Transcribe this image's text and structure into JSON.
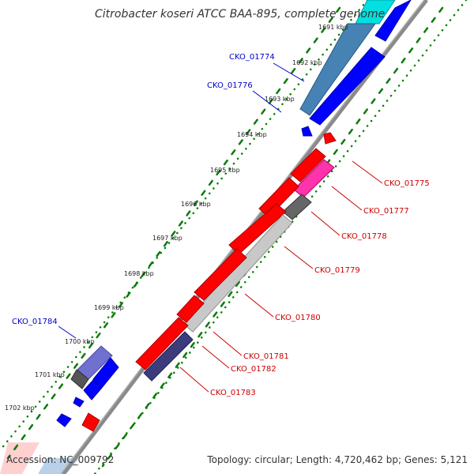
{
  "title": "Citrobacter koseri ATCC BAA-895, complete genome",
  "accession": "Accession: NC_009792",
  "topology": "Topology: circular; Length: 4,720,462 bp; Genes: 5,121",
  "colors": {
    "forward": "#0000ff",
    "reverse": "#ff0000",
    "cyan": "#00ffff",
    "steel": "#4682b4",
    "magenta": "#ff33aa",
    "slate": "#3c3c7c",
    "gray": "#666666",
    "lightgray": "#c0c0c0",
    "backbone": "#8a8a8a",
    "dots": "#008000"
  },
  "ticks": [
    "1691 kbp",
    "1692 kbp",
    "1693 kbp",
    "1694 kbp",
    "1695 kbp",
    "1696 kbp",
    "1697 kbp",
    "1698 kbp",
    "1699 kbp",
    "1700 kbp",
    "1701 kbp",
    "1702 kbp"
  ],
  "gene_labels": {
    "left": [
      "CKO_01774",
      "CKO_01776",
      "CKO_01784"
    ],
    "right": [
      "CKO_01775",
      "CKO_01777",
      "CKO_01778",
      "CKO_01779",
      "CKO_01780",
      "CKO_01781",
      "CKO_01782",
      "CKO_01783"
    ]
  }
}
